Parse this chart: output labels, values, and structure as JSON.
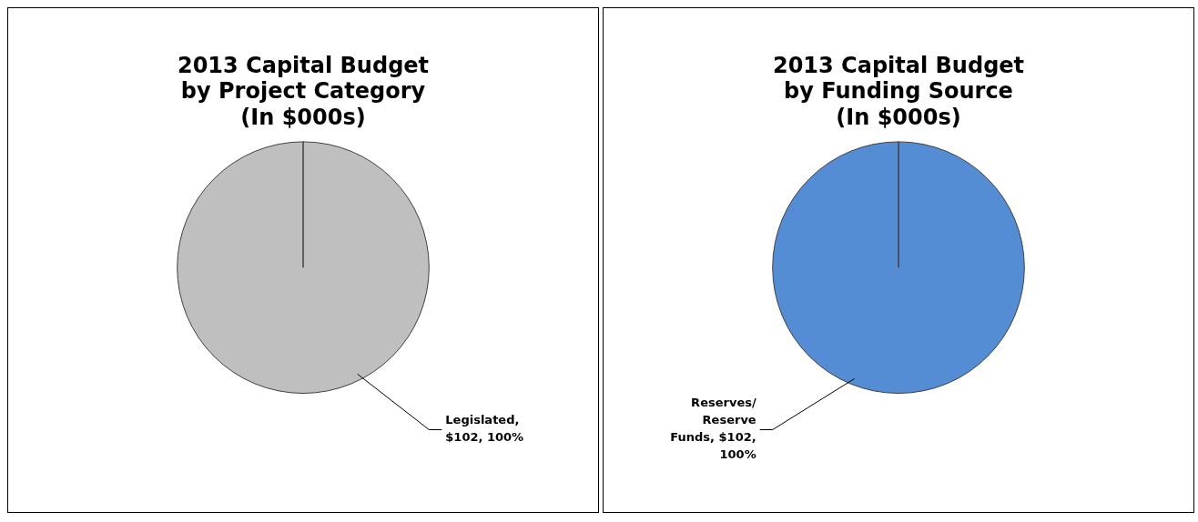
{
  "chart_data": [
    {
      "type": "pie",
      "title": "2013 Capital Budget\nby Project Category\n(In $000s)",
      "categories": [
        "Legislated"
      ],
      "values": [
        102
      ],
      "colors": [
        "#bfbfbf"
      ],
      "value_labels": [
        ", $102, 100%"
      ],
      "legend": false
    },
    {
      "type": "pie",
      "title": "2013 Capital Budget\nby Funding Source\n(In $000s)",
      "categories": [
        "Reserves/ Reserve Funds"
      ],
      "values": [
        102
      ],
      "colors": [
        "#548dd4"
      ],
      "value_labels": [
        ", $102, 100%"
      ],
      "legend": false
    }
  ]
}
